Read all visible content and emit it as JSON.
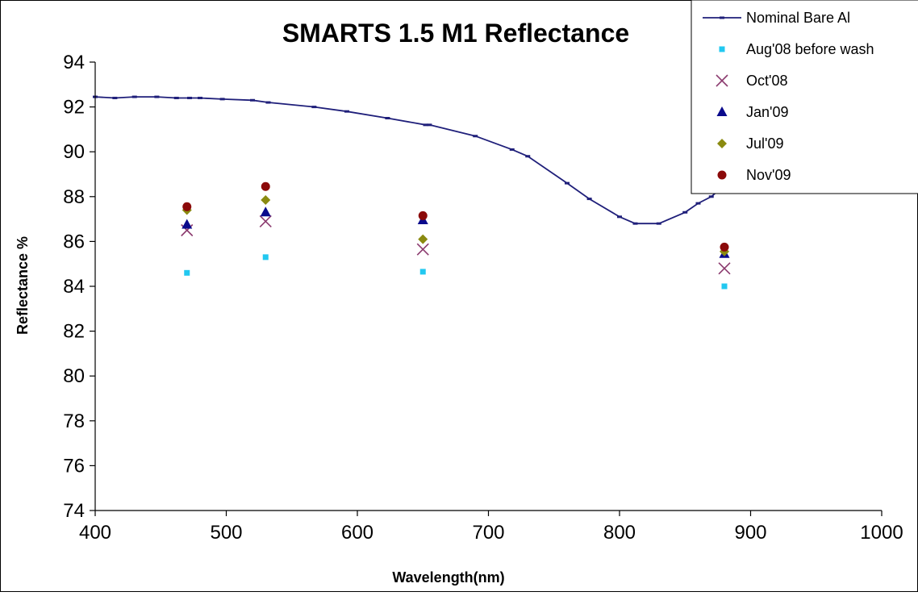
{
  "chart_data": {
    "type": "scatter",
    "title": "SMARTS 1.5 M1 Reflectance",
    "xlabel": "Wavelength(nm)",
    "ylabel": "Reflectance %",
    "xlim": [
      400,
      1000
    ],
    "ylim": [
      74,
      94
    ],
    "x_ticks": [
      "400",
      "500",
      "600",
      "700",
      "800",
      "900",
      "1000"
    ],
    "y_ticks": [
      "74",
      "76",
      "78",
      "80",
      "82",
      "84",
      "86",
      "88",
      "90",
      "92",
      "94"
    ],
    "grid": false,
    "legend_position": "top-right",
    "series": [
      {
        "name": "Nominal Bare Al",
        "kind": "line",
        "color": "#1f1f7a",
        "x": [
          400,
          415,
          430,
          447,
          462,
          472,
          480,
          497,
          520,
          532,
          567,
          592,
          623,
          652,
          655,
          690,
          718,
          730,
          760,
          777,
          800,
          812,
          830,
          850,
          860,
          870,
          880
        ],
        "y": [
          92.45,
          92.4,
          92.45,
          92.45,
          92.4,
          92.4,
          92.4,
          92.35,
          92.3,
          92.2,
          92.0,
          91.8,
          91.5,
          91.2,
          91.2,
          90.7,
          90.1,
          89.8,
          88.6,
          87.9,
          87.1,
          86.8,
          86.8,
          87.3,
          87.7,
          88.0,
          88.5
        ]
      },
      {
        "name": "Aug'08 before wash",
        "kind": "square",
        "color": "#22c8f0",
        "x": [
          470,
          530,
          650,
          880
        ],
        "y": [
          84.6,
          85.3,
          84.65,
          84.0
        ]
      },
      {
        "name": "Oct'08",
        "kind": "x",
        "color": "#8b3a6e",
        "x": [
          470,
          530,
          650,
          880
        ],
        "y": [
          86.5,
          86.9,
          85.65,
          84.8
        ]
      },
      {
        "name": "Jan'09",
        "kind": "triangle",
        "color": "#0a0a8c",
        "x": [
          470,
          530,
          650,
          880
        ],
        "y": [
          86.75,
          87.3,
          86.95,
          85.45
        ]
      },
      {
        "name": "Jul'09",
        "kind": "diamond",
        "color": "#8a8a10",
        "x": [
          470,
          530,
          650,
          880
        ],
        "y": [
          87.4,
          87.85,
          86.1,
          85.55
        ]
      },
      {
        "name": "Nov'09",
        "kind": "circle",
        "color": "#8b0a0a",
        "x": [
          470,
          530,
          650,
          880
        ],
        "y": [
          87.55,
          88.45,
          87.15,
          85.75
        ]
      }
    ]
  }
}
